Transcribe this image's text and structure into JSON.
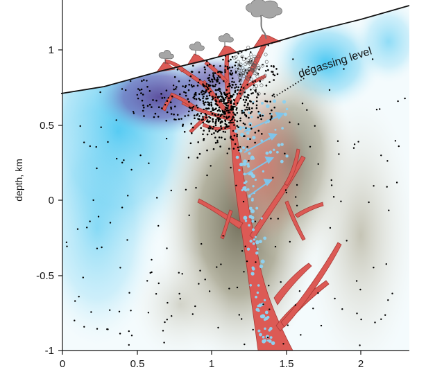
{
  "figure": {
    "y_axis_label": "depth, km",
    "annotation_degassing": "degassing level",
    "x_ticks": [
      "0",
      "0.5",
      "1",
      "1.5",
      "2"
    ],
    "y_ticks": [
      "1",
      "0.5",
      "0",
      "-0.5",
      "-1"
    ],
    "colors": {
      "magma": "#d9534f",
      "magma_outline": "#a52a2a",
      "cold_zone": "#3fc8f0",
      "deep_cold": "#6a5aa8",
      "warm_zone": "#8c8772",
      "topography": "#111111",
      "bubbles": "#8fd0ee",
      "seismic_events": "#000000",
      "ash_cloud": "#9a9a9a"
    },
    "icons": [
      "volcanic-cone-icon",
      "ash-plume-icon",
      "bubble-arrow-icon"
    ]
  }
}
